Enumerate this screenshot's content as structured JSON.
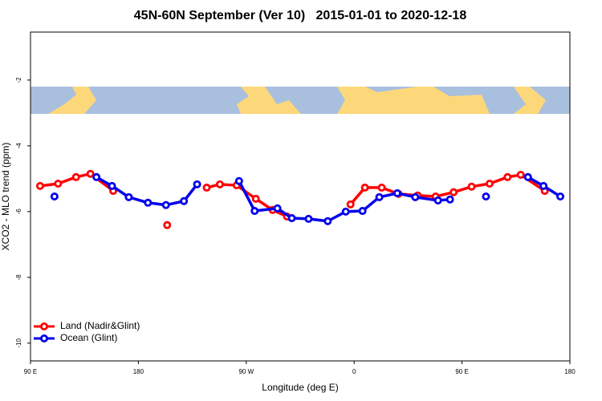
{
  "chart_data": {
    "type": "line",
    "title": "45N-60N September (Ver 10)   2015-01-01 to 2020-12-18",
    "x_label": "Longitude (deg E)",
    "y_label": "XCO2 - MLO trend (ppm)",
    "xlim": [
      90,
      540
    ],
    "ylim": [
      -10.54,
      -0.54
    ],
    "xticks": [
      {
        "value": 90,
        "label": "90 E"
      },
      {
        "value": 180,
        "label": "180"
      },
      {
        "value": 270,
        "label": "90 W"
      },
      {
        "value": 360,
        "label": "0"
      },
      {
        "value": 450,
        "label": "90 E"
      },
      {
        "value": 540,
        "label": "180"
      }
    ],
    "yticks": [
      -10,
      -8,
      -6,
      -4,
      -2
    ],
    "legend": "bottom-left",
    "series": [
      {
        "name": "Land (Nadir&Glint)",
        "color": "#ff0000",
        "x": [
          98,
          113,
          128,
          140,
          159,
          180,
          204,
          220,
          237,
          248,
          262,
          278,
          292,
          304,
          330,
          357,
          369,
          383,
          397,
          413,
          428,
          443,
          458,
          473,
          488,
          499,
          519
        ],
        "values": [
          -5.22,
          -5.15,
          -4.95,
          -4.85,
          -5.37,
          null,
          -6.41,
          null,
          -5.27,
          -5.17,
          -5.2,
          -5.61,
          -5.95,
          -6.15,
          null,
          -5.78,
          -5.27,
          -5.27,
          -5.46,
          -5.51,
          -5.54,
          -5.41,
          -5.24,
          -5.15,
          -4.95,
          -4.88,
          -5.37
        ]
      },
      {
        "name": "Ocean (Glint)",
        "color": "#0000ee",
        "x": [
          110,
          128,
          145,
          158,
          172,
          188,
          203,
          218,
          229,
          247,
          264,
          277,
          296,
          308,
          322,
          338,
          353,
          367,
          381,
          396,
          411,
          430,
          440,
          455,
          470,
          488,
          505,
          518,
          532
        ],
        "values": [
          -5.54,
          null,
          -4.95,
          -5.22,
          -5.56,
          -5.73,
          -5.8,
          -5.68,
          -5.17,
          null,
          -5.07,
          -5.98,
          -5.9,
          -6.2,
          -6.22,
          -6.29,
          -6.0,
          -5.98,
          -5.56,
          -5.44,
          -5.56,
          -5.66,
          -5.63,
          null,
          -5.54,
          null,
          -4.95,
          -5.22,
          -5.54
        ]
      }
    ]
  }
}
